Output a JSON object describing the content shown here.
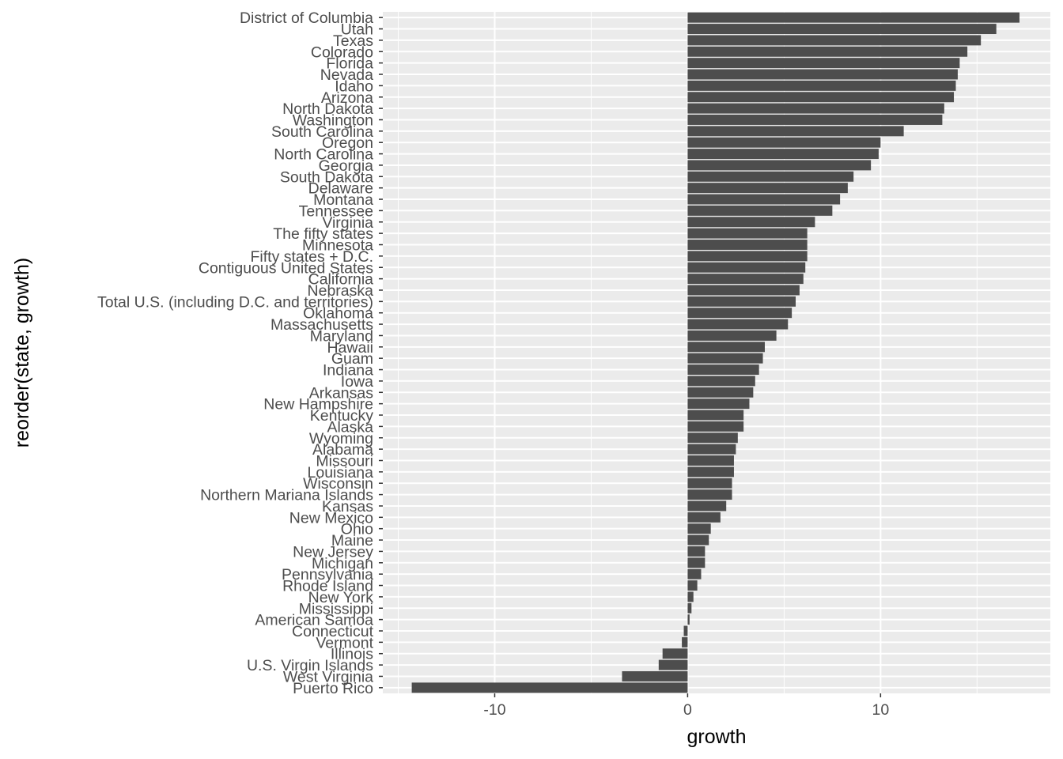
{
  "chart_data": {
    "type": "bar",
    "orientation": "horizontal",
    "title": "",
    "xlabel": "growth",
    "ylabel": "reorder(state, growth)",
    "xlim": [
      -15.8,
      18.8
    ],
    "xticks": [
      -10,
      0,
      10
    ],
    "xtick_labels": [
      "-10",
      "0",
      "10"
    ],
    "grid": true,
    "legend": "none",
    "colors": {
      "panel_background": "#ebebeb",
      "grid_major": "#ffffff",
      "bar_fill": "#4d4d4d",
      "tick_text": "#4d4d4d",
      "axis_title": "#000000"
    },
    "categories": [
      "District of Columbia",
      "Utah",
      "Texas",
      "Colorado",
      "Florida",
      "Nevada",
      "Idaho",
      "Arizona",
      "North Dakota",
      "Washington",
      "South Carolina",
      "Oregon",
      "North Carolina",
      "Georgia",
      "South Dakota",
      "Delaware",
      "Montana",
      "Tennessee",
      "Virginia",
      "The fifty states",
      "Minnesota",
      "Fifty states + D.C.",
      "Contiguous United States",
      "California",
      "Nebraska",
      "Total U.S. (including D.C. and territories)",
      "Oklahoma",
      "Massachusetts",
      "Maryland",
      "Hawaii",
      "Guam",
      "Indiana",
      "Iowa",
      "Arkansas",
      "New Hampshire",
      "Kentucky",
      "Alaska",
      "Wyoming",
      "Alabama",
      "Missouri",
      "Louisiana",
      "Wisconsin",
      "Northern Mariana Islands",
      "Kansas",
      "New Mexico",
      "Ohio",
      "Maine",
      "New Jersey",
      "Michigan",
      "Pennsylvania",
      "Rhode Island",
      "New York",
      "Mississippi",
      "American Samoa",
      "Connecticut",
      "Vermont",
      "Illinois",
      "U.S. Virgin Islands",
      "West Virginia",
      "Puerto Rico"
    ],
    "values": [
      17.2,
      16.0,
      15.2,
      14.5,
      14.1,
      14.0,
      13.9,
      13.8,
      13.3,
      13.2,
      11.2,
      10.0,
      9.9,
      9.5,
      8.6,
      8.3,
      7.9,
      7.5,
      6.6,
      6.2,
      6.2,
      6.2,
      6.1,
      6.0,
      5.8,
      5.6,
      5.4,
      5.2,
      4.6,
      4.0,
      3.9,
      3.7,
      3.5,
      3.4,
      3.2,
      2.9,
      2.9,
      2.6,
      2.5,
      2.4,
      2.4,
      2.3,
      2.3,
      2.0,
      1.7,
      1.2,
      1.1,
      0.9,
      0.9,
      0.7,
      0.5,
      0.3,
      0.2,
      0.1,
      -0.2,
      -0.3,
      -1.3,
      -1.5,
      -3.4,
      -14.3
    ]
  }
}
